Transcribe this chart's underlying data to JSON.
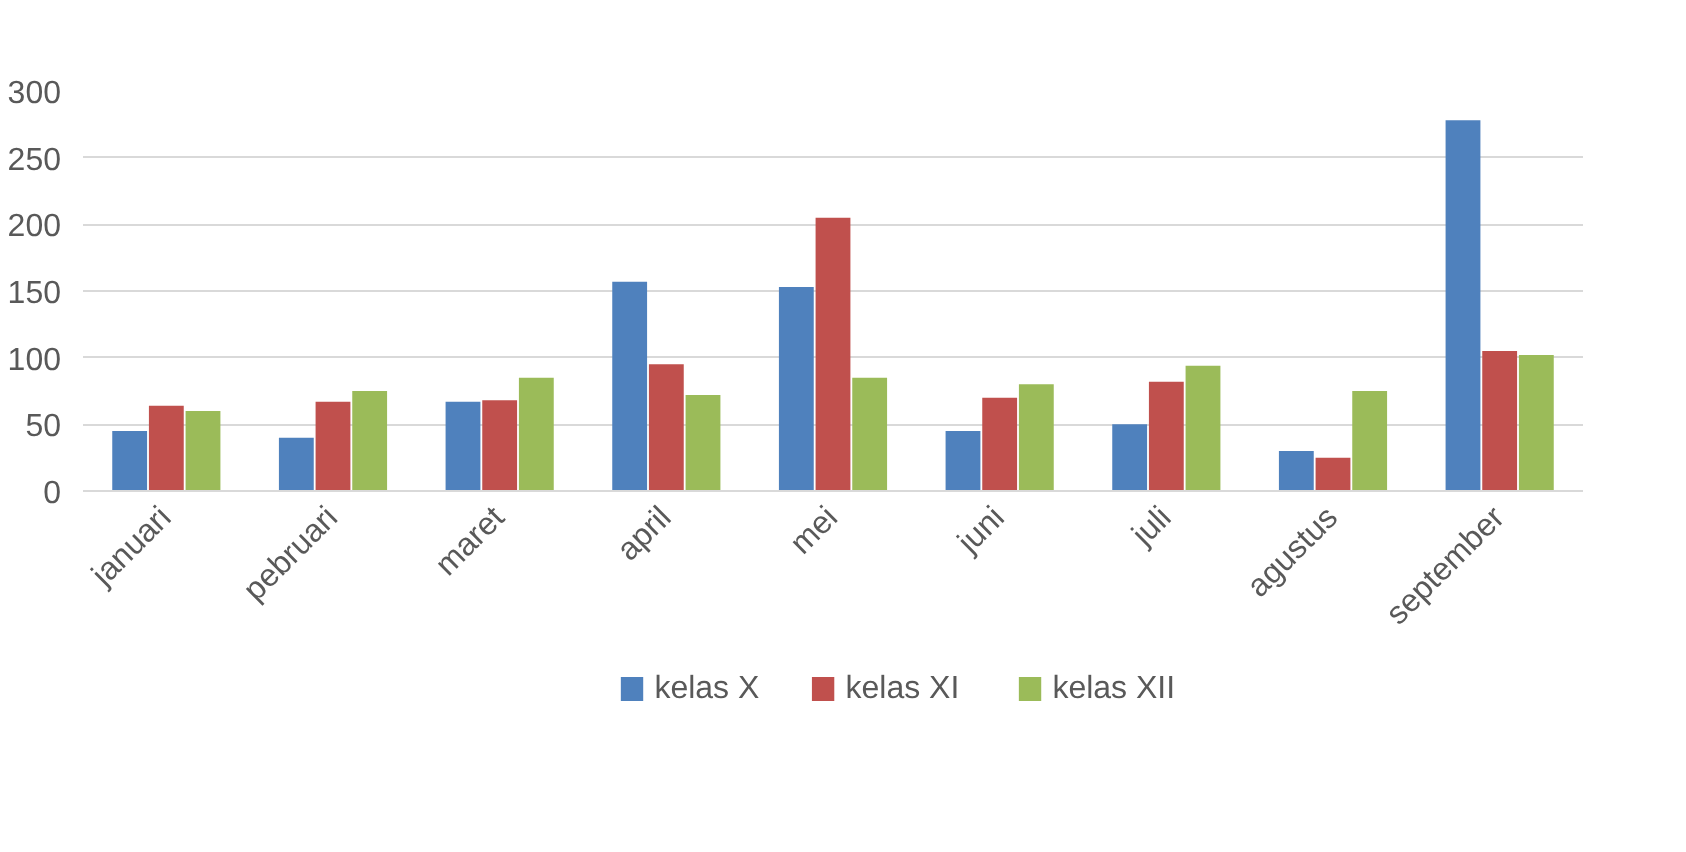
{
  "chart_data": {
    "type": "bar",
    "categories": [
      "januari",
      "pebruari",
      "maret",
      "april",
      "mei",
      "juni",
      "juli",
      "agustus",
      "september"
    ],
    "series": [
      {
        "name": "kelas X",
        "color": "#4f81bd",
        "values": [
          45,
          40,
          67,
          157,
          153,
          45,
          50,
          30,
          278
        ]
      },
      {
        "name": "kelas XI",
        "color": "#c0504d",
        "values": [
          64,
          67,
          68,
          95,
          205,
          70,
          82,
          25,
          105
        ]
      },
      {
        "name": "kelas XII",
        "color": "#9bbb59",
        "values": [
          60,
          75,
          85,
          72,
          85,
          80,
          94,
          75,
          102
        ]
      }
    ],
    "ylim": [
      0,
      300
    ],
    "yticks": [
      0,
      50,
      100,
      150,
      200,
      250,
      300
    ],
    "grid": "y",
    "legend": "bottom"
  }
}
